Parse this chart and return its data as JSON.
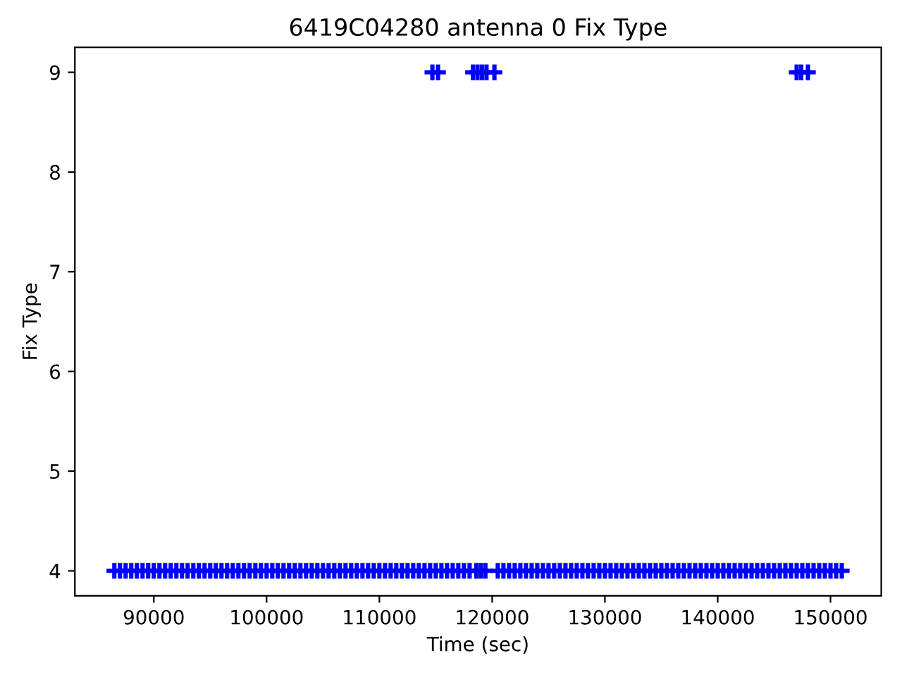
{
  "chart_data": {
    "type": "scatter",
    "title": "6419C04280 antenna 0 Fix Type",
    "xlabel": "Time (sec)",
    "ylabel": "Fix Type",
    "marker": "cross",
    "xlim": [
      83000,
      154500
    ],
    "ylim": [
      3.75,
      9.25
    ],
    "xticks": [
      90000,
      100000,
      110000,
      120000,
      130000,
      140000,
      150000
    ],
    "yticks": [
      4,
      5,
      6,
      7,
      8,
      9
    ],
    "series": [
      {
        "color": "#0000ff",
        "x": [
          86500,
          87000,
          87500,
          88000,
          88500,
          89000,
          89500,
          90000,
          90500,
          91000,
          91500,
          92000,
          92500,
          93000,
          93500,
          94000,
          94500,
          95000,
          95500,
          96000,
          96500,
          97000,
          97500,
          98000,
          98500,
          99000,
          99500,
          100000,
          100500,
          101000,
          101500,
          102000,
          102500,
          103000,
          103500,
          104000,
          104500,
          105000,
          105500,
          106000,
          106500,
          107000,
          107500,
          108000,
          108500,
          109000,
          109500,
          110000,
          110500,
          111000,
          111500,
          112000,
          112500,
          113000,
          113500,
          114000,
          114500,
          115000,
          115500,
          116000,
          116500,
          117000,
          117500,
          118000,
          118600,
          119000,
          119400,
          120500,
          121000,
          121500,
          122000,
          122500,
          123000,
          123500,
          124000,
          124500,
          125000,
          125500,
          126000,
          126500,
          127000,
          127500,
          128000,
          128500,
          129000,
          129500,
          130000,
          130500,
          131000,
          131500,
          132000,
          132500,
          133000,
          133500,
          134000,
          134500,
          135000,
          135500,
          136000,
          136500,
          137000,
          137500,
          138000,
          138500,
          139000,
          139500,
          140000,
          140500,
          141000,
          141500,
          142000,
          142500,
          143000,
          143500,
          144000,
          144500,
          145000,
          145500,
          146000,
          146500,
          147000,
          147500,
          148000,
          148500,
          149000,
          149500,
          150000,
          150500,
          151000
        ],
        "values": [
          4,
          4,
          4,
          4,
          4,
          4,
          4,
          4,
          4,
          4,
          4,
          4,
          4,
          4,
          4,
          4,
          4,
          4,
          4,
          4,
          4,
          4,
          4,
          4,
          4,
          4,
          4,
          4,
          4,
          4,
          4,
          4,
          4,
          4,
          4,
          4,
          4,
          4,
          4,
          4,
          4,
          4,
          4,
          4,
          4,
          4,
          4,
          4,
          4,
          4,
          4,
          4,
          4,
          4,
          4,
          4,
          4,
          4,
          4,
          4,
          4,
          4,
          4,
          4,
          4,
          4,
          4,
          4,
          4,
          4,
          4,
          4,
          4,
          4,
          4,
          4,
          4,
          4,
          4,
          4,
          4,
          4,
          4,
          4,
          4,
          4,
          4,
          4,
          4,
          4,
          4,
          4,
          4,
          4,
          4,
          4,
          4,
          4,
          4,
          4,
          4,
          4,
          4,
          4,
          4,
          4,
          4,
          4,
          4,
          4,
          4,
          4,
          4,
          4,
          4,
          4,
          4,
          4,
          4,
          4,
          4,
          4,
          4,
          4,
          4,
          4,
          4,
          4,
          4
        ]
      },
      {
        "color": "#0000ff",
        "x": [
          114700,
          115200,
          118300,
          118700,
          119100,
          119500,
          120200,
          147000,
          147400,
          148000
        ],
        "values": [
          9,
          9,
          9,
          9,
          9,
          9,
          9,
          9,
          9,
          9
        ]
      }
    ]
  }
}
